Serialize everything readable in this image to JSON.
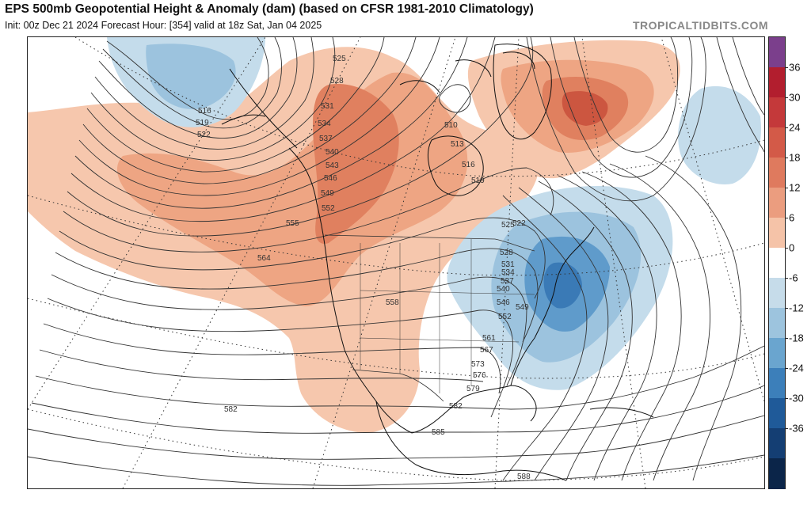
{
  "header": {
    "title": "EPS 500mb Geopotential Height & Anomaly (dam) (based on CFSR 1981-2010 Climatology)",
    "subtitle": "Init: 00z Dec 21 2024   Forecast Hour: [354]   valid at 18z Sat, Jan 04 2025",
    "credit": "TROPICALTIDBITS.COM"
  },
  "colorbar": {
    "labels": [
      "36",
      "30",
      "24",
      "18",
      "12",
      "6",
      "0",
      "-6",
      "-12",
      "-18",
      "-24",
      "-30",
      "-36"
    ],
    "colors": [
      "#7b3f8c",
      "#b21e2e",
      "#c4393a",
      "#d35a48",
      "#df7a5e",
      "#eb9d7f",
      "#f5c3a8",
      "#ffffff",
      "#c6dcea",
      "#9dc4de",
      "#6aa5cf",
      "#3c7fba",
      "#1f5a99",
      "#143e73",
      "#0b2549"
    ]
  },
  "map": {
    "contour_labels": [
      "516",
      "519",
      "522",
      "525",
      "528",
      "531",
      "534",
      "537",
      "540",
      "543",
      "546",
      "549",
      "552",
      "555",
      "558",
      "561",
      "564",
      "567",
      "573",
      "576",
      "579",
      "582",
      "585",
      "588",
      "510",
      "513"
    ],
    "anomaly_colors": {
      "positive_light": "#f6c7ad",
      "positive_mid": "#eea583",
      "positive_strong": "#e0805f",
      "positive_max": "#cc5640",
      "negative_light": "#c4dceb",
      "negative_mid": "#9cc3de",
      "negative_strong": "#5f9bcb",
      "negative_max": "#3a7ab6"
    }
  }
}
